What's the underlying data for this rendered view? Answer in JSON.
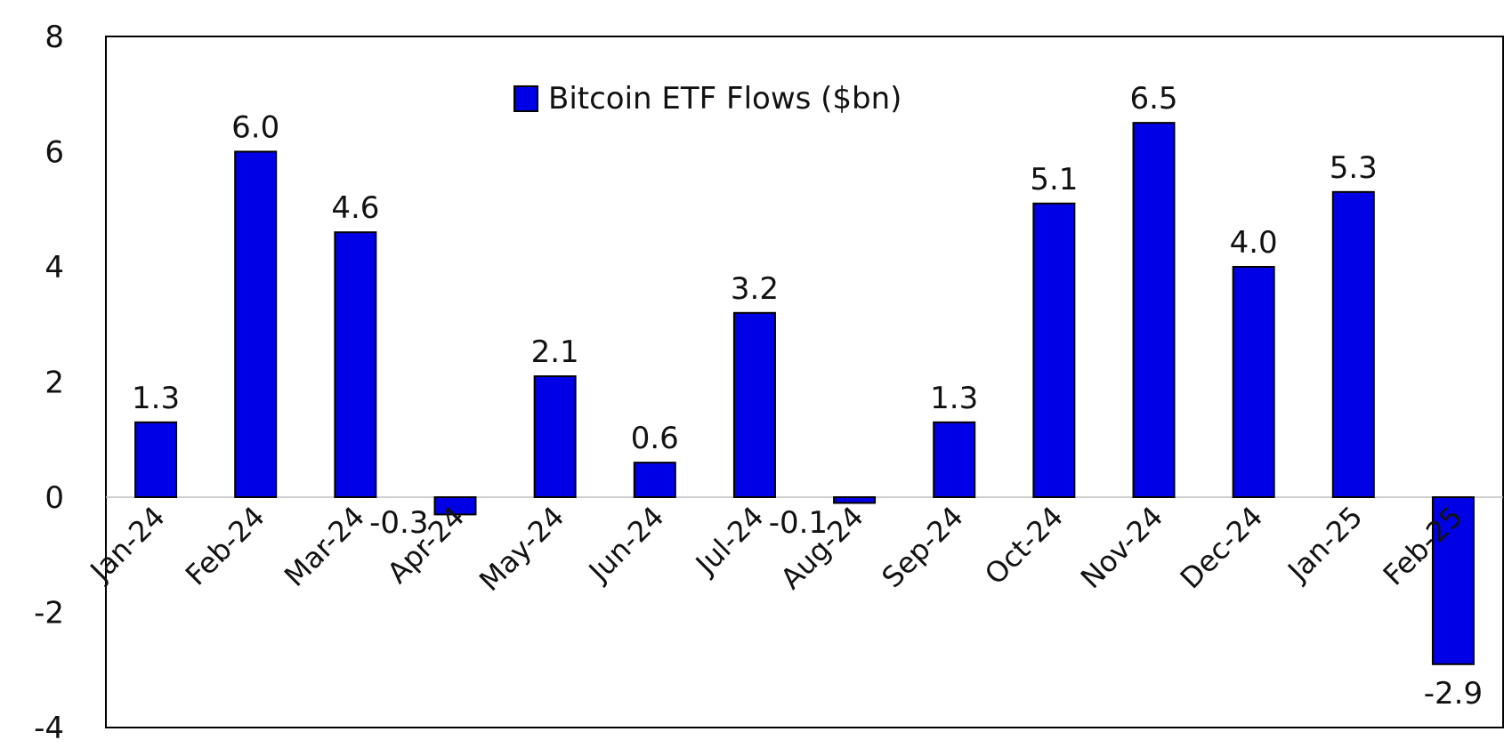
{
  "chart_data": {
    "type": "bar",
    "categories": [
      "Jan-24",
      "Feb-24",
      "Mar-24",
      "Apr-24",
      "May-24",
      "Jun-24",
      "Jul-24",
      "Aug-24",
      "Sep-24",
      "Oct-24",
      "Nov-24",
      "Dec-24",
      "Jan-25",
      "Feb-25"
    ],
    "series": [
      {
        "name": "Bitcoin ETF Flows ($bn)",
        "values": [
          1.3,
          6.0,
          4.6,
          -0.3,
          2.1,
          0.6,
          3.2,
          -0.1,
          1.3,
          5.1,
          6.5,
          4.0,
          5.3,
          -2.9
        ],
        "labels": [
          "1.3",
          "6.0",
          "4.6",
          "-0.3",
          "2.1",
          "0.6",
          "3.2",
          "-0.1",
          "1.3",
          "5.1",
          "6.5",
          "4.0",
          "5.3",
          "-2.9"
        ],
        "color": "#0000e6"
      }
    ],
    "ylim": [
      -4,
      8
    ],
    "yticks": [
      -4,
      -2,
      0,
      2,
      4,
      6,
      8
    ],
    "ytick_labels": [
      "-4",
      "-2",
      "0",
      "2",
      "4",
      "6",
      "8"
    ],
    "xlabel": "",
    "ylabel": "",
    "title": "",
    "legend_position": "top-center",
    "grid": false
  },
  "colors": {
    "bar": "#0000e6",
    "bar_stroke": "#000000",
    "axis": "#000000",
    "zero_line": "#bfbfbf"
  }
}
